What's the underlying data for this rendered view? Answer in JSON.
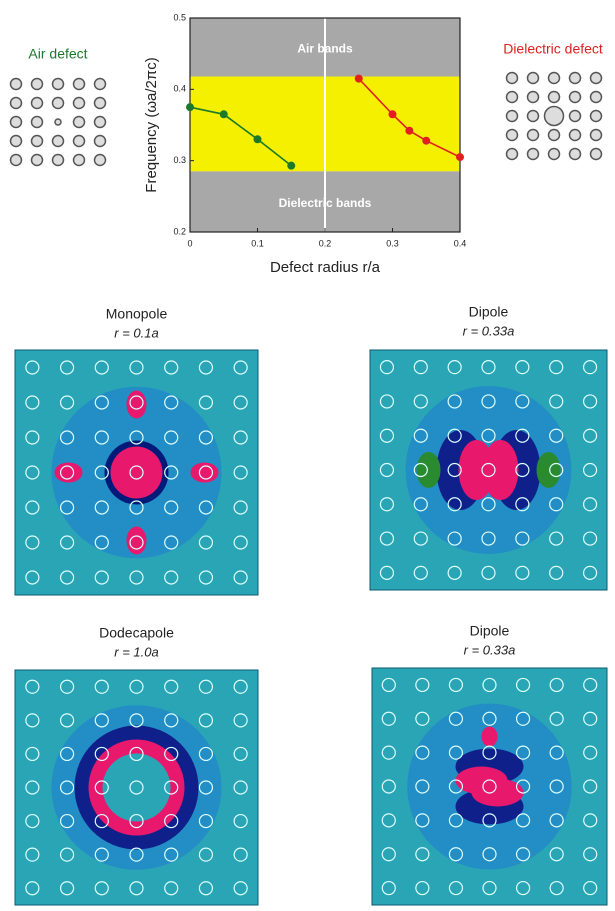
{
  "chart_data": {
    "type": "line",
    "x_label": "Defect radius r/a",
    "y_label": "Frequency (ωa/2πc)",
    "annotations": [
      "Air bands",
      "Dielectric bands"
    ],
    "band_gap": [
      0.285,
      0.418
    ],
    "xlim": [
      0,
      0.4
    ],
    "xticks": [
      0,
      0.1,
      0.2,
      0.3,
      0.4
    ],
    "ylim": [
      0.2,
      0.5
    ],
    "yticks": [
      0.2,
      0.3,
      0.4,
      0.5
    ],
    "series": [
      {
        "name": "Air defect",
        "color": "#1a7a2a",
        "x": [
          0,
          0.05,
          0.1,
          0.15
        ],
        "values": [
          0.375,
          0.365,
          0.33,
          0.293
        ]
      },
      {
        "name": "Dielectric defect",
        "color": "#e02020",
        "x": [
          0.25,
          0.3,
          0.325,
          0.35,
          0.4
        ],
        "values": [
          0.415,
          0.365,
          0.342,
          0.328,
          0.305
        ]
      }
    ]
  },
  "panels": [
    {
      "title": "Monopole",
      "subtitle": "r = 0.1a"
    },
    {
      "title": "Dipole",
      "subtitle": "r = 0.33a"
    },
    {
      "title": "Dodecapole",
      "subtitle": "r = 1.0a"
    },
    {
      "title": "Dipole",
      "subtitle": "r = 0.33a"
    }
  ]
}
